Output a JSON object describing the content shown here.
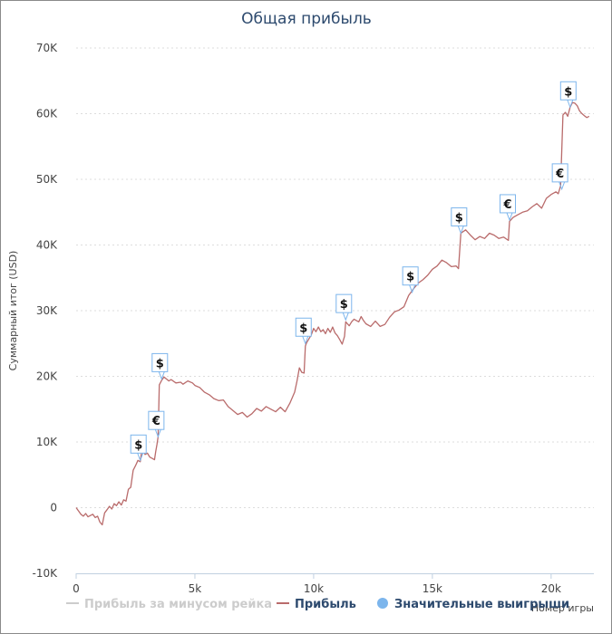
{
  "chart_data": {
    "type": "line",
    "title": "Общая прибыль",
    "xlabel": "Номер игры",
    "ylabel": "Суммарный итог (USD)",
    "xlim": [
      0,
      21800
    ],
    "ylim": [
      -10000,
      70000
    ],
    "x_ticks": [
      {
        "value": 0,
        "label": "0"
      },
      {
        "value": 5000,
        "label": "5k"
      },
      {
        "value": 10000,
        "label": "10k"
      },
      {
        "value": 15000,
        "label": "15k"
      },
      {
        "value": 20000,
        "label": "20k"
      }
    ],
    "y_ticks": [
      {
        "value": -10000,
        "label": "-10K"
      },
      {
        "value": 0,
        "label": "0"
      },
      {
        "value": 10000,
        "label": "10K"
      },
      {
        "value": 20000,
        "label": "20K"
      },
      {
        "value": 30000,
        "label": "30K"
      },
      {
        "value": 40000,
        "label": "40K"
      },
      {
        "value": 50000,
        "label": "50K"
      },
      {
        "value": 60000,
        "label": "60K"
      },
      {
        "value": 70000,
        "label": "70K"
      }
    ],
    "grid": true,
    "legend_position": "bottom",
    "legend": [
      {
        "label": "Прибыль за минусом рейка",
        "color": "#cccccc",
        "symbol": "line",
        "dimmed": true
      },
      {
        "label": "Прибыль",
        "color": "#b96b6b",
        "symbol": "line",
        "dimmed": false
      },
      {
        "label": "Значительные выигрыши",
        "color": "#7cb5ec",
        "symbol": "circle",
        "dimmed": false
      }
    ],
    "series": [
      {
        "name": "Прибыль",
        "color": "#b96b6b",
        "points": [
          [
            0,
            0
          ],
          [
            100,
            -500
          ],
          [
            200,
            -1000
          ],
          [
            300,
            -1300
          ],
          [
            400,
            -900
          ],
          [
            500,
            -1400
          ],
          [
            600,
            -1200
          ],
          [
            700,
            -1000
          ],
          [
            800,
            -1500
          ],
          [
            900,
            -1300
          ],
          [
            1000,
            -2200
          ],
          [
            1100,
            -2600
          ],
          [
            1200,
            -800
          ],
          [
            1300,
            -300
          ],
          [
            1400,
            200
          ],
          [
            1500,
            -200
          ],
          [
            1600,
            600
          ],
          [
            1700,
            300
          ],
          [
            1800,
            900
          ],
          [
            1900,
            400
          ],
          [
            2000,
            1200
          ],
          [
            2100,
            1000
          ],
          [
            2200,
            2800
          ],
          [
            2300,
            3100
          ],
          [
            2400,
            5700
          ],
          [
            2500,
            6400
          ],
          [
            2600,
            7200
          ],
          [
            2700,
            7000
          ],
          [
            2750,
            8300
          ],
          [
            2800,
            9000
          ],
          [
            2900,
            8100
          ],
          [
            3000,
            8300
          ],
          [
            3100,
            7700
          ],
          [
            3200,
            7500
          ],
          [
            3300,
            7300
          ],
          [
            3350,
            8500
          ],
          [
            3400,
            9600
          ],
          [
            3450,
            10800
          ],
          [
            3500,
            18700
          ],
          [
            3600,
            19400
          ],
          [
            3700,
            19900
          ],
          [
            3800,
            19600
          ],
          [
            3900,
            19300
          ],
          [
            4000,
            19500
          ],
          [
            4200,
            19000
          ],
          [
            4400,
            19100
          ],
          [
            4500,
            18800
          ],
          [
            4700,
            19300
          ],
          [
            4900,
            19000
          ],
          [
            5000,
            18600
          ],
          [
            5200,
            18300
          ],
          [
            5400,
            17600
          ],
          [
            5600,
            17200
          ],
          [
            5800,
            16600
          ],
          [
            6000,
            16300
          ],
          [
            6200,
            16400
          ],
          [
            6400,
            15400
          ],
          [
            6600,
            14800
          ],
          [
            6800,
            14200
          ],
          [
            7000,
            14500
          ],
          [
            7200,
            13800
          ],
          [
            7400,
            14300
          ],
          [
            7600,
            15100
          ],
          [
            7800,
            14700
          ],
          [
            8000,
            15400
          ],
          [
            8200,
            15000
          ],
          [
            8400,
            14600
          ],
          [
            8600,
            15300
          ],
          [
            8800,
            14600
          ],
          [
            9000,
            15900
          ],
          [
            9200,
            17600
          ],
          [
            9300,
            19300
          ],
          [
            9400,
            21300
          ],
          [
            9500,
            20600
          ],
          [
            9600,
            20500
          ],
          [
            9650,
            24600
          ],
          [
            9700,
            25100
          ],
          [
            9800,
            25700
          ],
          [
            9900,
            26300
          ],
          [
            10000,
            27300
          ],
          [
            10100,
            26800
          ],
          [
            10200,
            27500
          ],
          [
            10300,
            26800
          ],
          [
            10400,
            27100
          ],
          [
            10500,
            26500
          ],
          [
            10600,
            27300
          ],
          [
            10700,
            26700
          ],
          [
            10800,
            27500
          ],
          [
            10900,
            26600
          ],
          [
            11000,
            26200
          ],
          [
            11100,
            25600
          ],
          [
            11200,
            24900
          ],
          [
            11300,
            26100
          ],
          [
            11350,
            28300
          ],
          [
            11400,
            28100
          ],
          [
            11500,
            27700
          ],
          [
            11600,
            28300
          ],
          [
            11700,
            28700
          ],
          [
            11800,
            28500
          ],
          [
            11900,
            28300
          ],
          [
            12000,
            29100
          ],
          [
            12100,
            28500
          ],
          [
            12200,
            28000
          ],
          [
            12400,
            27600
          ],
          [
            12600,
            28400
          ],
          [
            12800,
            27600
          ],
          [
            13000,
            27900
          ],
          [
            13200,
            29000
          ],
          [
            13400,
            29800
          ],
          [
            13600,
            30100
          ],
          [
            13800,
            30600
          ],
          [
            14000,
            32300
          ],
          [
            14200,
            33300
          ],
          [
            14400,
            34200
          ],
          [
            14600,
            34700
          ],
          [
            14800,
            35400
          ],
          [
            15000,
            36300
          ],
          [
            15200,
            36800
          ],
          [
            15400,
            37700
          ],
          [
            15600,
            37300
          ],
          [
            15800,
            36700
          ],
          [
            16000,
            36800
          ],
          [
            16100,
            36400
          ],
          [
            16200,
            41800
          ],
          [
            16400,
            42300
          ],
          [
            16600,
            41500
          ],
          [
            16800,
            40800
          ],
          [
            17000,
            41300
          ],
          [
            17200,
            41000
          ],
          [
            17400,
            41800
          ],
          [
            17600,
            41500
          ],
          [
            17800,
            41000
          ],
          [
            18000,
            41200
          ],
          [
            18200,
            40700
          ],
          [
            18250,
            43600
          ],
          [
            18400,
            44200
          ],
          [
            18600,
            44600
          ],
          [
            18800,
            45000
          ],
          [
            19000,
            45200
          ],
          [
            19200,
            45800
          ],
          [
            19400,
            46300
          ],
          [
            19600,
            45600
          ],
          [
            19800,
            47100
          ],
          [
            20000,
            47700
          ],
          [
            20200,
            48100
          ],
          [
            20300,
            47800
          ],
          [
            20400,
            49000
          ],
          [
            20500,
            59800
          ],
          [
            20600,
            60200
          ],
          [
            20700,
            59600
          ],
          [
            20800,
            61000
          ],
          [
            20900,
            61700
          ],
          [
            21000,
            61600
          ],
          [
            21100,
            61200
          ],
          [
            21200,
            60400
          ],
          [
            21300,
            60000
          ],
          [
            21400,
            59700
          ],
          [
            21500,
            59400
          ],
          [
            21600,
            59600
          ]
        ]
      }
    ],
    "big_wins": [
      {
        "x": 2700,
        "y": 7200,
        "symbol": "$"
      },
      {
        "x": 3450,
        "y": 10800,
        "symbol": "€"
      },
      {
        "x": 3600,
        "y": 19600,
        "symbol": "$"
      },
      {
        "x": 9650,
        "y": 25000,
        "symbol": "$"
      },
      {
        "x": 11350,
        "y": 28600,
        "symbol": "$"
      },
      {
        "x": 14150,
        "y": 32800,
        "symbol": "$"
      },
      {
        "x": 16200,
        "y": 41800,
        "symbol": "$"
      },
      {
        "x": 18250,
        "y": 43800,
        "symbol": "€"
      },
      {
        "x": 20450,
        "y": 48500,
        "symbol": "€"
      },
      {
        "x": 20800,
        "y": 61000,
        "symbol": "$"
      }
    ]
  }
}
